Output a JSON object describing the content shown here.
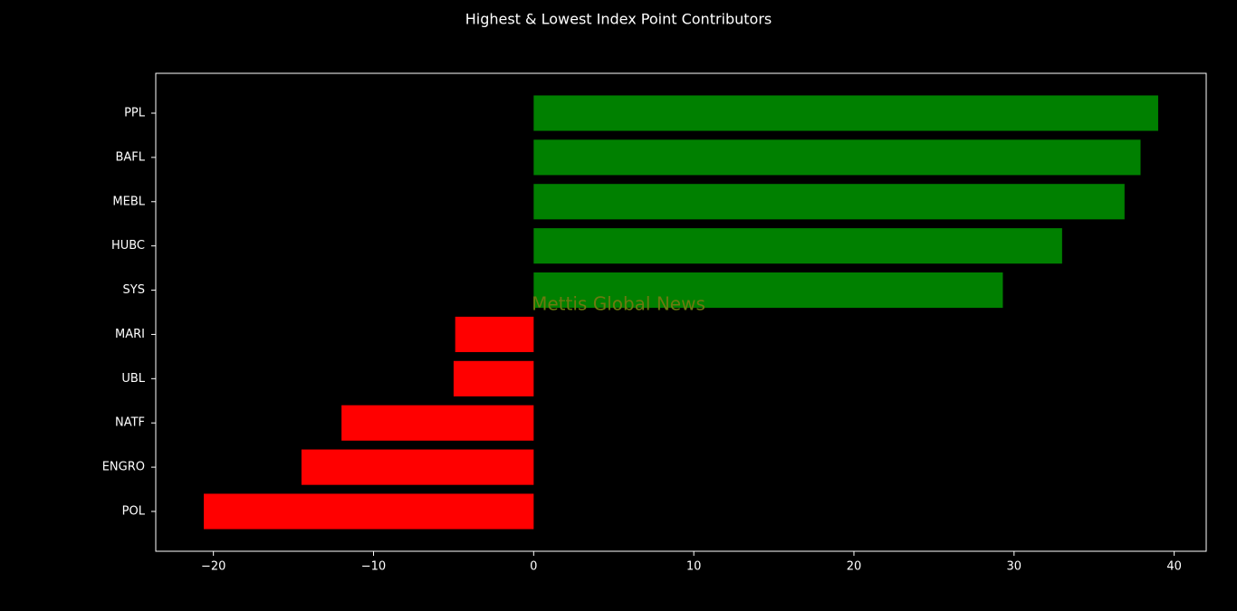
{
  "chart_data": {
    "type": "barh",
    "title": "Highest & Lowest Index Point Contributors",
    "watermark": "Mettis Global News",
    "categories": [
      "PPL",
      "BAFL",
      "MEBL",
      "HUBC",
      "SYS",
      "MARI",
      "UBL",
      "NATF",
      "ENGRO",
      "POL"
    ],
    "values": [
      39.0,
      37.9,
      36.9,
      33.0,
      29.3,
      -4.9,
      -5.0,
      -12.0,
      -14.5,
      -20.6
    ],
    "colors": [
      "#008000",
      "#008000",
      "#008000",
      "#008000",
      "#008000",
      "#ff0000",
      "#ff0000",
      "#ff0000",
      "#ff0000",
      "#ff0000"
    ],
    "xlim": [
      -23.6,
      42.0
    ],
    "xticks": [
      {
        "value": -20,
        "label": "−20"
      },
      {
        "value": -10,
        "label": "−10"
      },
      0,
      10,
      20,
      30,
      40
    ]
  }
}
